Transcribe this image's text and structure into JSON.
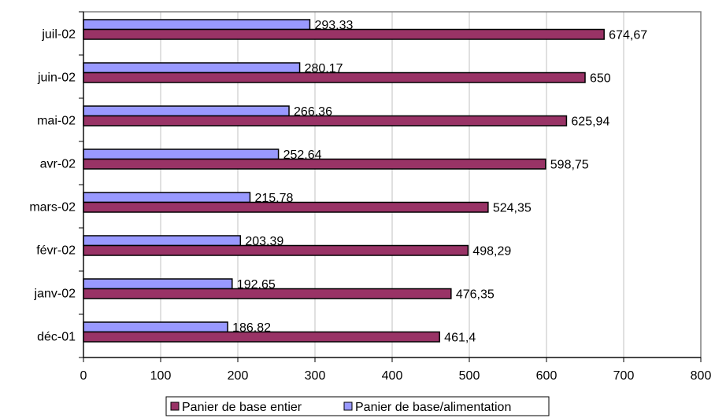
{
  "chart_data": {
    "type": "bar",
    "orientation": "horizontal",
    "categories": [
      "juil-02",
      "juin-02",
      "mai-02",
      "avr-02",
      "mars-02",
      "févr-02",
      "janv-02",
      "déc-01"
    ],
    "series": [
      {
        "name": "Panier de base/alimentation",
        "color": "#9999ff",
        "values": [
          293.33,
          280.17,
          266.36,
          252.64,
          215.78,
          203.39,
          192.65,
          186.82
        ],
        "labels": [
          "293,33",
          "280,17",
          "266,36",
          "252,64",
          "215,78",
          "203,39",
          "192,65",
          "186,82"
        ]
      },
      {
        "name": "Panier de base entier",
        "color": "#993366",
        "values": [
          674.67,
          650,
          625.94,
          598.75,
          524.35,
          498.29,
          476.35,
          461.4
        ],
        "labels": [
          "674,67",
          "650",
          "625,94",
          "598,75",
          "524,35",
          "498,29",
          "476,35",
          "461,4"
        ]
      }
    ],
    "xlim": [
      0,
      800
    ],
    "xticks": [
      0,
      100,
      200,
      300,
      400,
      500,
      600,
      700,
      800
    ],
    "grid": "vertical",
    "legend": {
      "position": "bottom",
      "order": [
        "Panier de base entier",
        "Panier de base/alimentation"
      ]
    },
    "title": "",
    "xlabel": "",
    "ylabel": ""
  }
}
